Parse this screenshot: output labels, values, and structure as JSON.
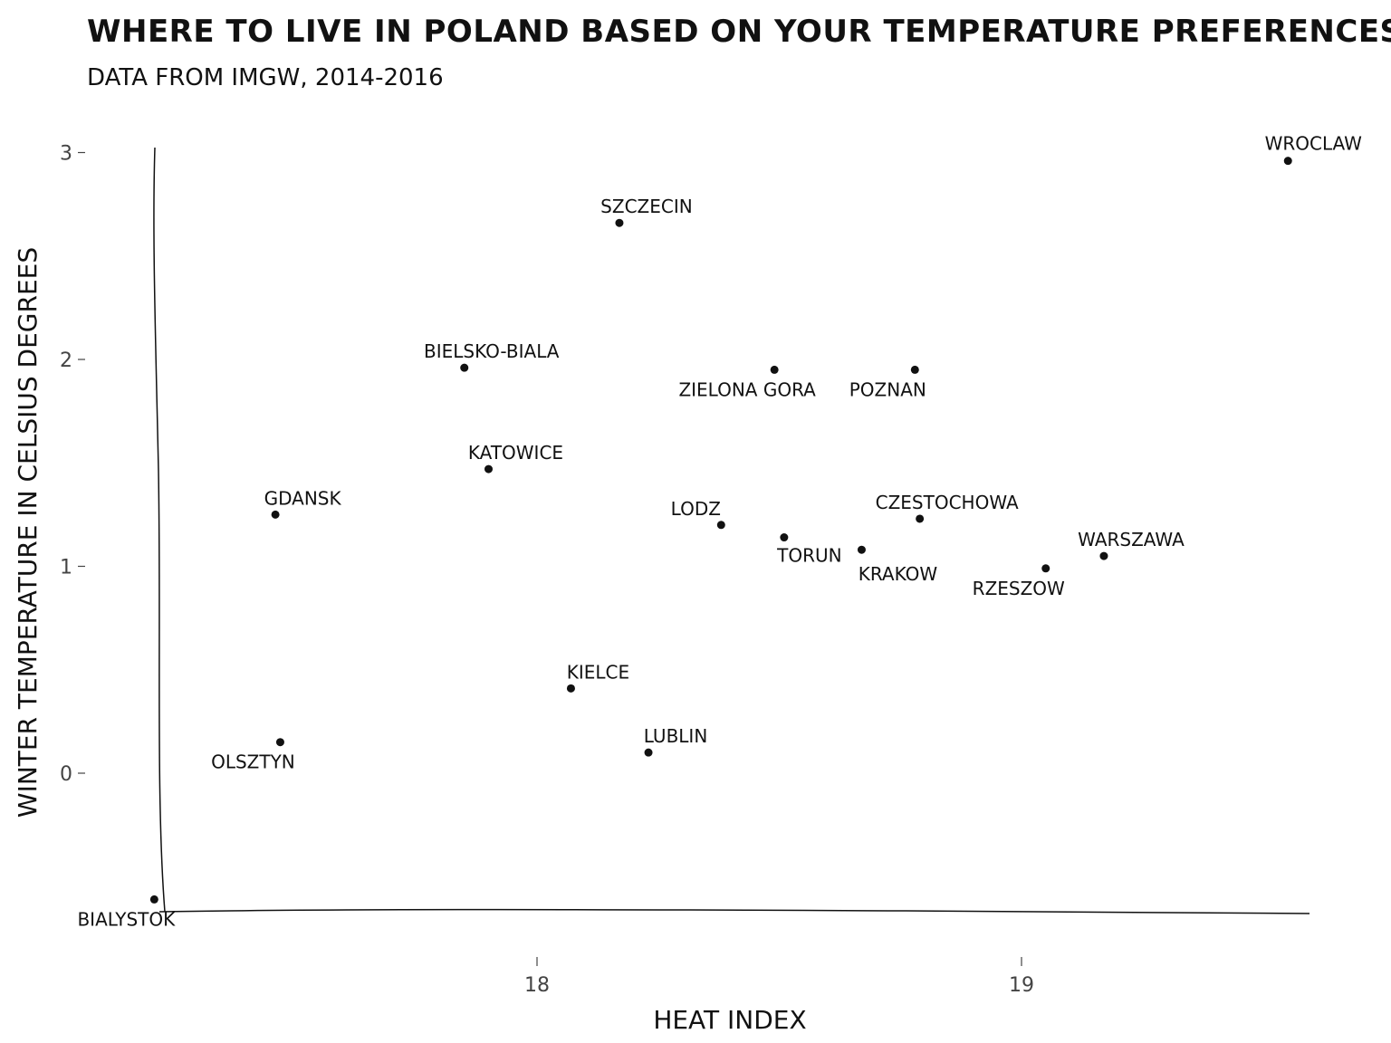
{
  "chart_data": {
    "type": "scatter",
    "title": "WHERE TO LIVE IN POLAND BASED ON YOUR TEMPERATURE PREFERENCES",
    "subtitle": "DATA FROM IMGW, 2014-2016",
    "xlabel": "HEAT INDEX",
    "ylabel": "WINTER TEMPERATURE IN CELSIUS DEGREES",
    "xlim": [
      17.2,
      19.6
    ],
    "ylim": [
      -0.7,
      3.05
    ],
    "x_ticks": [
      18,
      19
    ],
    "x_tick_labels": [
      "18",
      "19"
    ],
    "y_ticks": [
      0,
      1,
      2,
      3
    ],
    "y_tick_labels": [
      "0",
      "1",
      "2",
      "3"
    ],
    "grid": false,
    "points": [
      {
        "label": "BIALYSTOK",
        "x": 17.21,
        "y": -0.61,
        "label_pos": "below"
      },
      {
        "label": "OLSZTYN",
        "x": 17.47,
        "y": 0.15,
        "label_pos": "below-left"
      },
      {
        "label": "GDANSK",
        "x": 17.46,
        "y": 1.25,
        "label_pos": "above-right"
      },
      {
        "label": "BIELSKO-BIALA",
        "x": 17.85,
        "y": 1.96,
        "label_pos": "above-right"
      },
      {
        "label": "KATOWICE",
        "x": 17.9,
        "y": 1.47,
        "label_pos": "above-right"
      },
      {
        "label": "KIELCE",
        "x": 18.07,
        "y": 0.41,
        "label_pos": "above-right"
      },
      {
        "label": "SZCZECIN",
        "x": 18.17,
        "y": 2.66,
        "label_pos": "above-right"
      },
      {
        "label": "LUBLIN",
        "x": 18.23,
        "y": 0.1,
        "label_pos": "above-right"
      },
      {
        "label": "LODZ",
        "x": 18.38,
        "y": 1.2,
        "label_pos": "above-left"
      },
      {
        "label": "ZIELONA GORA",
        "x": 18.49,
        "y": 1.95,
        "label_pos": "below-left"
      },
      {
        "label": "TORUN",
        "x": 18.51,
        "y": 1.14,
        "label_pos": "below"
      },
      {
        "label": "KRAKOW",
        "x": 18.67,
        "y": 1.08,
        "label_pos": "below-right"
      },
      {
        "label": "POZNAN",
        "x": 18.78,
        "y": 1.95,
        "label_pos": "below-left"
      },
      {
        "label": "CZESTOCHOWA",
        "x": 18.79,
        "y": 1.23,
        "label_pos": "above-right"
      },
      {
        "label": "RZESZOW",
        "x": 19.05,
        "y": 0.99,
        "label_pos": "below-left"
      },
      {
        "label": "WARSZAWA",
        "x": 19.17,
        "y": 1.05,
        "label_pos": "above-right"
      },
      {
        "label": "WROCLAW",
        "x": 19.55,
        "y": 2.96,
        "label_pos": "above-right"
      }
    ]
  }
}
